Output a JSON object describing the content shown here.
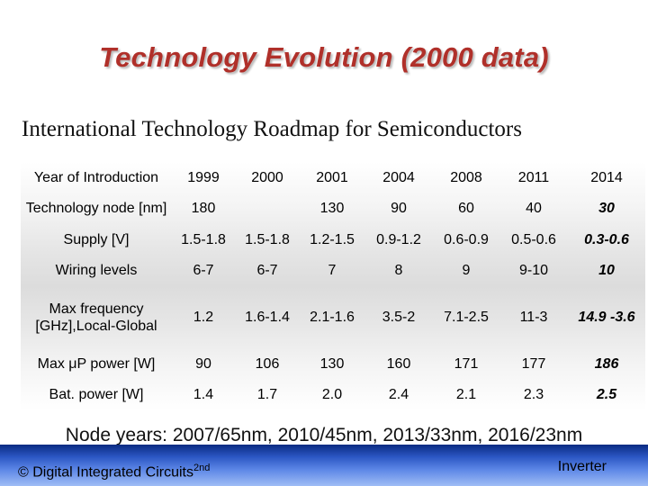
{
  "slide": {
    "title": "Technology Evolution (2000 data)",
    "subtitle": "International Technology Roadmap for Semiconductors",
    "node_years": "Node years: 2007/65nm, 2010/45nm, 2013/33nm, 2016/23nm"
  },
  "table": {
    "rows": [
      {
        "label": "Year of Introduction",
        "cells": [
          "1999",
          "2000",
          "2001",
          "2004",
          "2008",
          "2011",
          "2014"
        ]
      },
      {
        "label": "Technology node [nm]",
        "cells": [
          "180",
          "",
          "130",
          "90",
          "60",
          "40",
          "30"
        ]
      },
      {
        "label": "Supply [V]",
        "cells": [
          "1.5-1.8",
          "1.5-1.8",
          "1.2-1.5",
          "0.9-1.2",
          "0.6-0.9",
          "0.5-0.6",
          "0.3-0.6"
        ]
      },
      {
        "label": "Wiring levels",
        "cells": [
          "6-7",
          "6-7",
          "7",
          "8",
          "9",
          "9-10",
          "10"
        ]
      },
      {
        "label": "Max frequency [GHz],Local-Global",
        "cells": [
          "1.2",
          "1.6-1.4",
          "2.1-1.6",
          "3.5-2",
          "7.1-2.5",
          "11-3",
          "14.9 -3.6"
        ]
      },
      {
        "label": "Max μP power [W]",
        "cells": [
          "90",
          "106",
          "130",
          "160",
          "171",
          "177",
          "186"
        ]
      },
      {
        "label": "Bat. power [W]",
        "cells": [
          "1.4",
          "1.7",
          "2.0",
          "2.4",
          "2.1",
          "2.3",
          "2.5"
        ]
      }
    ]
  },
  "footer": {
    "left_text": "© Digital Integrated Circuits",
    "left_superscript": "2nd",
    "right_text": "Inverter"
  }
}
